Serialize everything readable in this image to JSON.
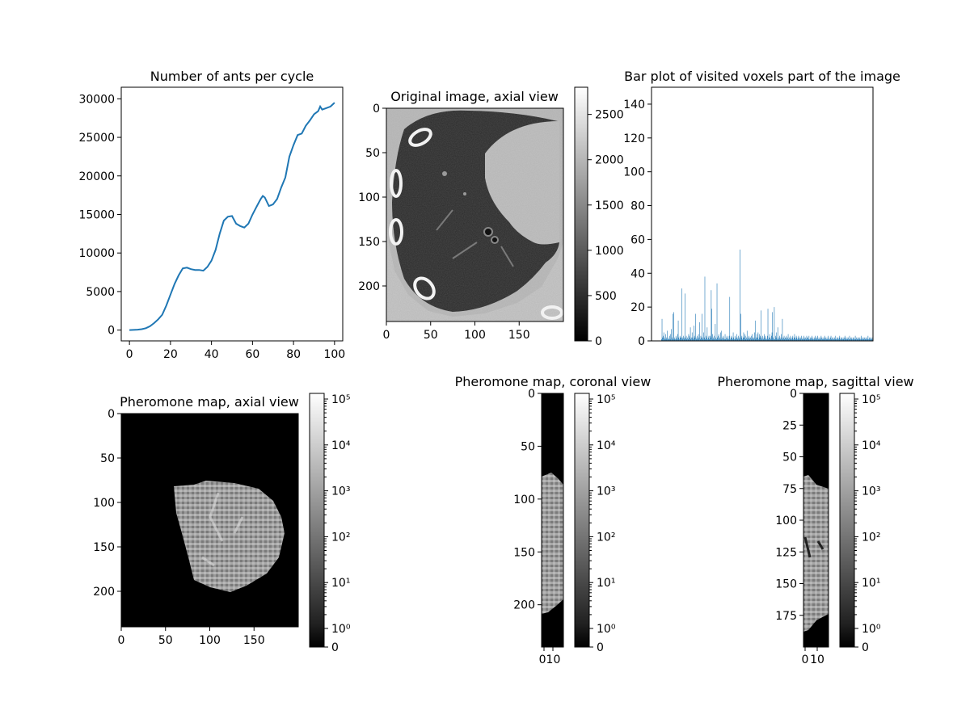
{
  "chart_data": [
    {
      "id": "ants",
      "type": "line",
      "title": "Number of ants per cycle",
      "xlabel": "",
      "ylabel": "",
      "xlim": [
        -4,
        104
      ],
      "ylim": [
        -1400,
        31500
      ],
      "xticks": [
        0,
        20,
        40,
        60,
        80,
        100
      ],
      "yticks": [
        0,
        5000,
        10000,
        15000,
        20000,
        25000,
        30000
      ],
      "color": "#1f77b4",
      "series": [
        {
          "x": [
            0,
            2,
            4,
            6,
            8,
            10,
            12,
            14,
            16,
            18,
            20,
            22,
            24,
            26,
            28,
            30,
            32,
            34,
            36,
            38,
            40,
            42,
            44,
            46,
            48,
            50,
            52,
            54,
            56,
            58,
            60,
            62,
            64,
            65,
            66,
            68,
            70,
            72,
            74,
            76,
            78,
            80,
            82,
            84,
            86,
            88,
            90,
            92,
            93,
            94,
            96,
            98,
            100
          ],
          "y": [
            0,
            20,
            60,
            120,
            250,
            500,
            900,
            1400,
            2000,
            3200,
            4600,
            6000,
            7100,
            8000,
            8100,
            7900,
            7800,
            7800,
            7700,
            8200,
            9000,
            10400,
            12500,
            14200,
            14700,
            14800,
            13800,
            13500,
            13300,
            13800,
            15000,
            16000,
            17000,
            17400,
            17200,
            16100,
            16300,
            17000,
            18500,
            19800,
            22500,
            24000,
            25300,
            25500,
            26500,
            27200,
            28000,
            28400,
            29000,
            28600,
            28800,
            29000,
            29500
          ]
        }
      ]
    },
    {
      "id": "orig",
      "type": "heatmap",
      "title": "Original image, axial view",
      "xlim": [
        0,
        200
      ],
      "ylim": [
        240,
        0
      ],
      "xticks": [
        0,
        50,
        100,
        150
      ],
      "yticks": [
        0,
        50,
        100,
        150,
        200
      ],
      "colormap": "gray",
      "colorbar": {
        "min": 0,
        "max": 2800,
        "ticks": [
          "0",
          "500",
          "1000",
          "1500",
          "2000",
          "2500"
        ]
      }
    },
    {
      "id": "bars",
      "type": "bar",
      "title": "Bar plot of visited voxels part of the image",
      "ylim": [
        0,
        150
      ],
      "yticks": [
        0,
        20,
        40,
        60,
        80,
        100,
        120,
        140
      ],
      "color": "#1f77b4",
      "bar_count": 350,
      "values": [
        1,
        13,
        2,
        3,
        5,
        2,
        1,
        4,
        1,
        2,
        6,
        1,
        2,
        1,
        3,
        1,
        4,
        7,
        2,
        1,
        16,
        17,
        1,
        2,
        1,
        3,
        2,
        1,
        4,
        12,
        2,
        1,
        3,
        2,
        2,
        31,
        1,
        2,
        3,
        2,
        1,
        28,
        2,
        3,
        1,
        2,
        1,
        4,
        3,
        2,
        8,
        1,
        2,
        5,
        2,
        1,
        9,
        3,
        2,
        16,
        1,
        2,
        3,
        1,
        4,
        2,
        11,
        1,
        3,
        2,
        16,
        2,
        1,
        5,
        2,
        38,
        1,
        3,
        2,
        8,
        1,
        2,
        3,
        1,
        3,
        2,
        30,
        19,
        4,
        1,
        2,
        3,
        1,
        10,
        2,
        1,
        34,
        2,
        3,
        4,
        1,
        2,
        5,
        1,
        6,
        2,
        1,
        3,
        2,
        1,
        4,
        1,
        2,
        3,
        1,
        2,
        1,
        3,
        26,
        1,
        2,
        3,
        2,
        1,
        5,
        2,
        1,
        3,
        1,
        2,
        4,
        2,
        1,
        3,
        2,
        1,
        54,
        16,
        2,
        3,
        1,
        2,
        5,
        2,
        4,
        3,
        1,
        2,
        6,
        1,
        2,
        3,
        1,
        2,
        2,
        3,
        1,
        4,
        2,
        1,
        2,
        5,
        12,
        1,
        2,
        4,
        2,
        5,
        1,
        4,
        2,
        3,
        18,
        2,
        1,
        3,
        1,
        2,
        4,
        3,
        1,
        2,
        1,
        3,
        19,
        1,
        2,
        4,
        2,
        1,
        3,
        5,
        17,
        2,
        1,
        20,
        1,
        3,
        2,
        5,
        1,
        8,
        2,
        1,
        3,
        2,
        1,
        4,
        2,
        13,
        1,
        2,
        3,
        1,
        2,
        2,
        3,
        1,
        2,
        4,
        1,
        2,
        1,
        3,
        2,
        1,
        2,
        3,
        1,
        2,
        4,
        2,
        1,
        3,
        2,
        1,
        2,
        3,
        1,
        2,
        1,
        2,
        3,
        1,
        2,
        1,
        3,
        2,
        1,
        2,
        1,
        3,
        2,
        2,
        1,
        3,
        1,
        2,
        1,
        2,
        3,
        1,
        2,
        1,
        2,
        1,
        3,
        2,
        1,
        2,
        3,
        1,
        2,
        1,
        2,
        1,
        3,
        2,
        1,
        2,
        1,
        2,
        3,
        1,
        2,
        1,
        2,
        1,
        3,
        1,
        2,
        1,
        2,
        3,
        1,
        2,
        1,
        2,
        1,
        2,
        1,
        3,
        1,
        2,
        1,
        2,
        1,
        2,
        3,
        1,
        2,
        1,
        2,
        1,
        2,
        1,
        2,
        3,
        1,
        2,
        1,
        2,
        1,
        2,
        1,
        3,
        1,
        2,
        1,
        2,
        1,
        2,
        1,
        2,
        1,
        3,
        1,
        2,
        1,
        2,
        1,
        2,
        1,
        2,
        1,
        3,
        1,
        2,
        1,
        2,
        1,
        2,
        1,
        2,
        1,
        2,
        1,
        3,
        1,
        2,
        1,
        2,
        1,
        2,
        1,
        2
      ]
    },
    {
      "id": "axial",
      "type": "heatmap",
      "title": "Pheromone map, axial view",
      "xlim": [
        0,
        200
      ],
      "ylim": [
        240,
        0
      ],
      "xticks": [
        0,
        50,
        100,
        150
      ],
      "yticks": [
        0,
        50,
        100,
        150,
        200
      ],
      "colormap": "gray",
      "scale": "symlog",
      "colorbar": {
        "ticks": [
          "0",
          "10⁰",
          "10¹",
          "10²",
          "10³",
          "10⁴",
          "10⁵"
        ]
      }
    },
    {
      "id": "coronal",
      "type": "heatmap",
      "title": "Pheromone map, coronal view",
      "xlim": [
        0,
        20
      ],
      "ylim": [
        240,
        0
      ],
      "xtick_label": "010",
      "yticks": [
        0,
        50,
        100,
        150,
        200
      ],
      "colormap": "gray",
      "scale": "symlog",
      "colorbar": {
        "ticks": [
          "0",
          "10⁰",
          "10¹",
          "10²",
          "10³",
          "10⁴",
          "10⁵"
        ]
      }
    },
    {
      "id": "sagittal",
      "type": "heatmap",
      "title": "Pheromone map, sagittal view",
      "xlim": [
        0,
        24
      ],
      "ylim": [
        200,
        0
      ],
      "xticks_labels": [
        "0",
        "10"
      ],
      "yticks": [
        0,
        25,
        50,
        75,
        100,
        125,
        150,
        175
      ],
      "colormap": "gray",
      "scale": "symlog",
      "colorbar": {
        "ticks": [
          "0",
          "10⁰",
          "10¹",
          "10²",
          "10³",
          "10⁴",
          "10⁵"
        ]
      }
    }
  ]
}
